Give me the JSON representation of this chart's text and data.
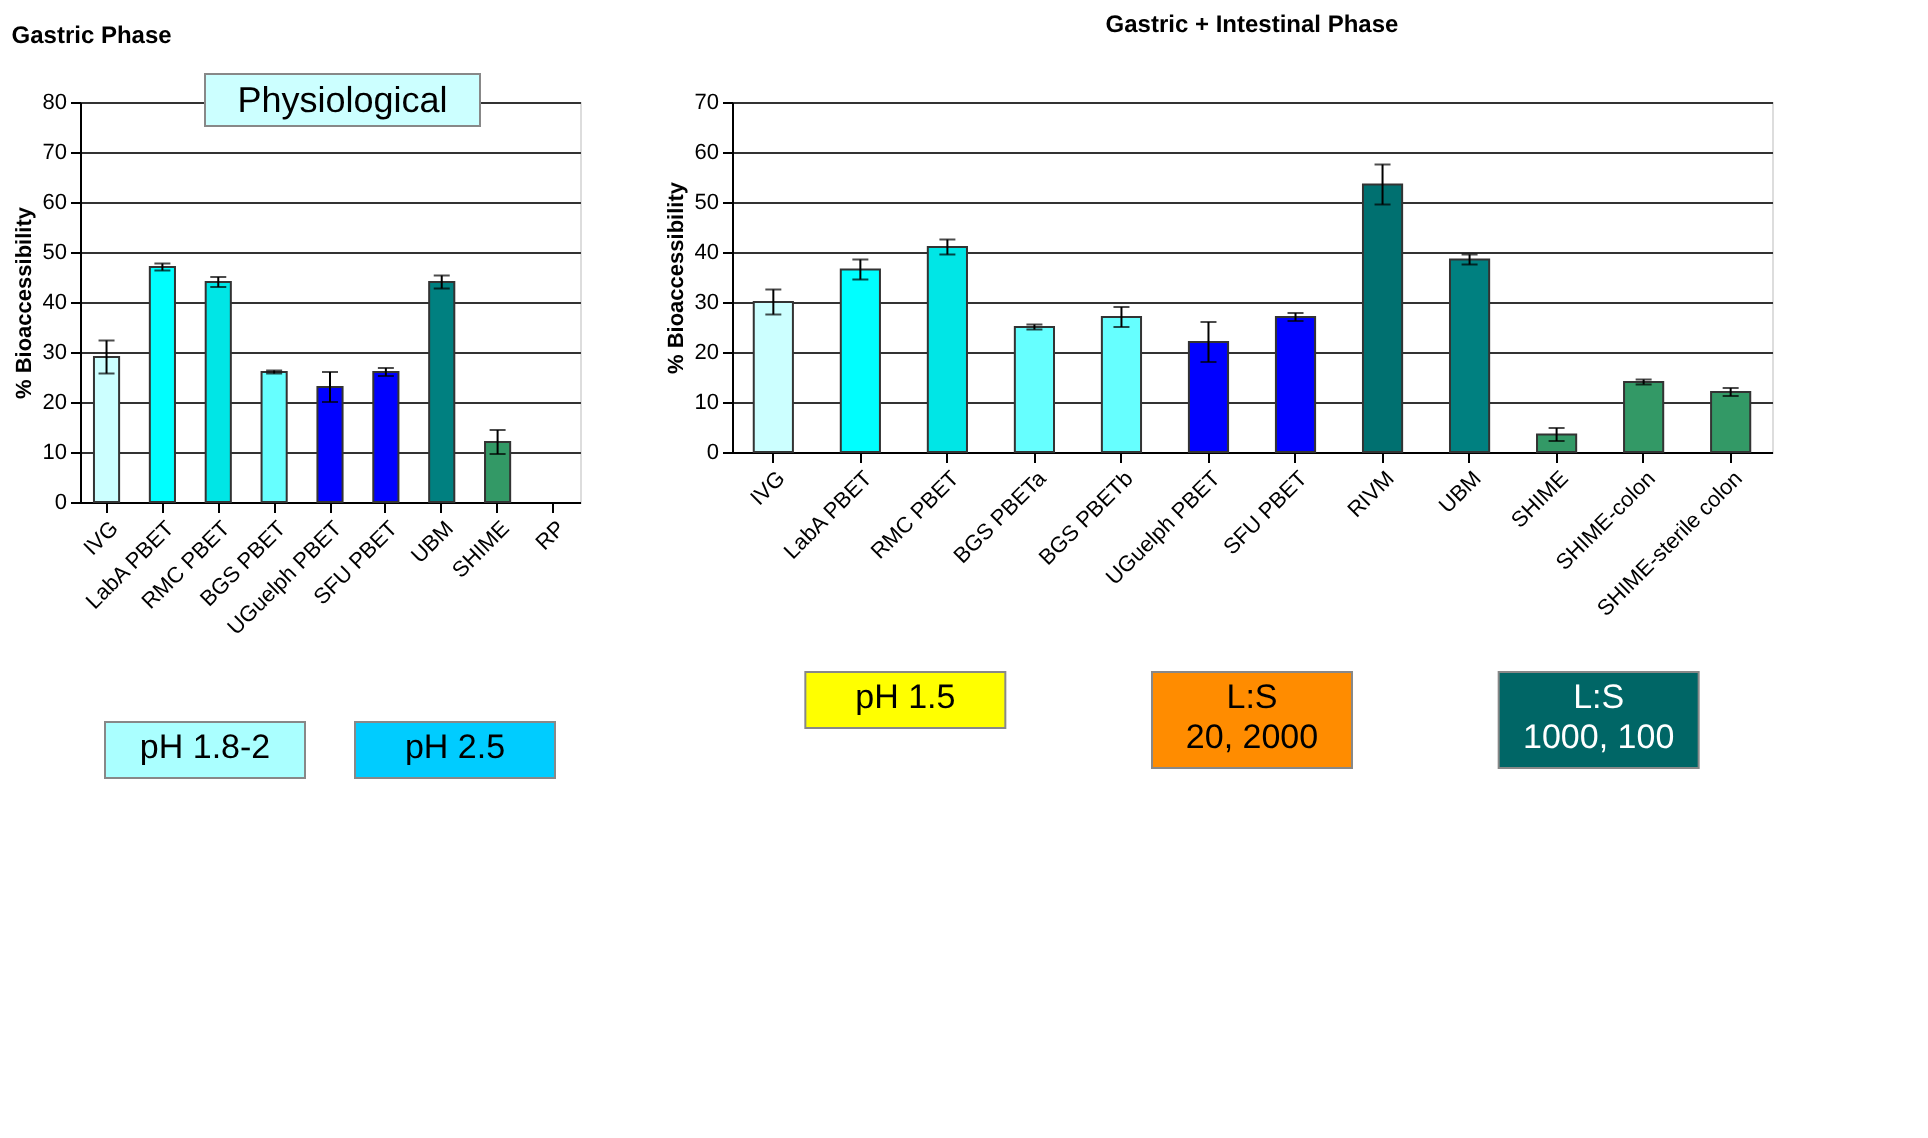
{
  "chart_data": [
    {
      "type": "bar",
      "title": "Gastric Phase",
      "ylabel": "% Bioaccessibility",
      "categories": [
        "IVG",
        "LabA PBET",
        "RMC PBET",
        "BGS PBET",
        "UGuelph PBET",
        "SFU PBET",
        "UBM",
        "SHIME",
        "RP"
      ],
      "values": [
        29,
        47,
        44,
        26,
        23,
        26,
        44,
        12,
        null
      ],
      "errors": [
        3.3,
        0.7,
        1,
        0.3,
        3,
        0.8,
        1.3,
        2.4,
        null
      ],
      "colors": [
        "#ccffff",
        "#00ffff",
        "#00e6e6",
        "#66ffff",
        "#0000ff",
        "#0000ff",
        "#008080",
        "#339966",
        "#339966"
      ],
      "ylim": [
        0,
        80
      ],
      "yticks": [
        0,
        10,
        20,
        30,
        40,
        50,
        60,
        70,
        80
      ],
      "grid": "y",
      "annotations": [
        "Physiological",
        "pH 1.8-2",
        "pH 2.5"
      ]
    },
    {
      "type": "bar",
      "title": "Gastric + Intestinal Phase",
      "ylabel": "% Bioaccessibility",
      "categories": [
        "IVG",
        "LabA PBET",
        "RMC PBET",
        "BGS PBETa",
        "BGS PBETb",
        "UGuelph PBET",
        "SFU PBET",
        "RIVM",
        "UBM",
        "SHIME",
        "SHIME-colon",
        "SHIME-sterile colon"
      ],
      "values": [
        30,
        36.5,
        41,
        25,
        27,
        22,
        27,
        53.5,
        38.5,
        3.5,
        14,
        12
      ],
      "errors": [
        2.5,
        2,
        1.5,
        0.5,
        2,
        4,
        0.8,
        4,
        1,
        1.3,
        0.5,
        0.8
      ],
      "colors": [
        "#ccffff",
        "#00ffff",
        "#00e6e6",
        "#66ffff",
        "#66ffff",
        "#0000ff",
        "#0000ff",
        "#007070",
        "#008080",
        "#339966",
        "#339966",
        "#339966"
      ],
      "ylim": [
        0,
        70
      ],
      "yticks": [
        0,
        10,
        20,
        30,
        40,
        50,
        60,
        70
      ],
      "grid": "y",
      "annotations": [
        "pH 1.5",
        "L:S\n20, 2000",
        "L:S\n1000, 100"
      ]
    }
  ]
}
